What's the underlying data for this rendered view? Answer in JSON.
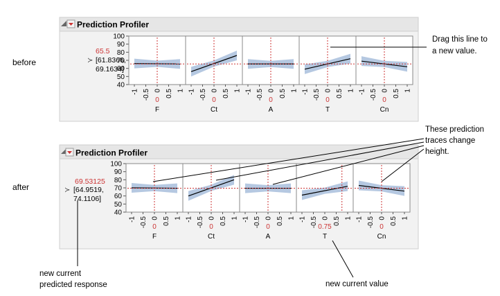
{
  "colors": {
    "accent": "#cc3333",
    "panel_bg": "#f2f2f2",
    "header_bg": "#e6e6e6",
    "band_fill": "#a8bedc",
    "plot_border": "#888888",
    "text": "#000000"
  },
  "profiler_title": "Prediction Profiler",
  "factors": [
    "F",
    "Ct",
    "A",
    "T",
    "Cn"
  ],
  "x_ticks": [
    "-1",
    "-0.5",
    "0",
    "0.5",
    "1"
  ],
  "y_ticks": [
    100,
    90,
    80,
    70,
    60,
    50,
    40
  ],
  "before": {
    "label": "before",
    "response_value": "65.5",
    "ci_line1": "[61.8366,",
    "ci_line2": "69.1634]",
    "factor_values": [
      "0",
      "0",
      "0",
      "0",
      "0"
    ],
    "annotation_drag": [
      "Drag this line to",
      "a new value."
    ]
  },
  "after": {
    "label": "after",
    "response_value": "69.53125",
    "ci_line1": "[64.9519,",
    "ci_line2": "74.1106]",
    "factor_values": [
      "0",
      "0",
      "0",
      "0.75",
      "0"
    ],
    "annotation_traces": [
      "These prediction",
      "traces change",
      "height."
    ],
    "annotation_response": [
      "new current",
      "predicted response"
    ],
    "annotation_value": "new current value"
  },
  "chart_data": [
    {
      "type": "line",
      "panel": "before",
      "ylim": [
        40,
        100
      ],
      "xlim": [
        -1,
        1
      ],
      "response": 65.5,
      "series": [
        {
          "name": "F",
          "x": [
            -1,
            1
          ],
          "y": [
            66,
            65.5
          ],
          "current_x": 0
        },
        {
          "name": "Ct",
          "x": [
            -1,
            1
          ],
          "y": [
            56,
            76
          ],
          "current_x": 0
        },
        {
          "name": "A",
          "x": [
            -1,
            1
          ],
          "y": [
            65.5,
            65.5
          ],
          "current_x": 0
        },
        {
          "name": "T",
          "x": [
            -1,
            1
          ],
          "y": [
            59,
            72
          ],
          "current_x": 0
        },
        {
          "name": "Cn",
          "x": [
            -1,
            1
          ],
          "y": [
            69,
            62
          ],
          "current_x": 0
        }
      ]
    },
    {
      "type": "line",
      "panel": "after",
      "ylim": [
        40,
        100
      ],
      "xlim": [
        -1,
        1
      ],
      "response": 69.53125,
      "series": [
        {
          "name": "F",
          "x": [
            -1,
            1
          ],
          "y": [
            70,
            69.5
          ],
          "current_x": 0
        },
        {
          "name": "Ct",
          "x": [
            -1,
            1
          ],
          "y": [
            60,
            80
          ],
          "current_x": 0
        },
        {
          "name": "A",
          "x": [
            -1,
            1
          ],
          "y": [
            69.5,
            69.5
          ],
          "current_x": 0
        },
        {
          "name": "T",
          "x": [
            -1,
            1
          ],
          "y": [
            61,
            72
          ],
          "current_x": 0.75
        },
        {
          "name": "Cn",
          "x": [
            -1,
            1
          ],
          "y": [
            73,
            66
          ],
          "current_x": 0
        }
      ]
    }
  ]
}
